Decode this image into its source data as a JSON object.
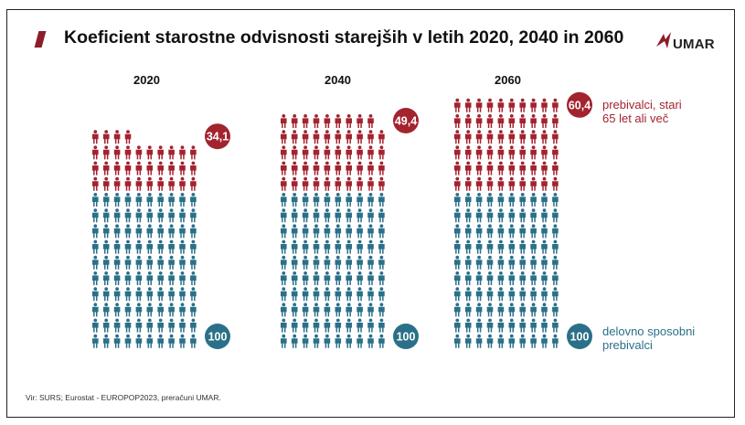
{
  "chart_data": {
    "type": "pictogram",
    "title": "Koeficient starostne odvisnosti starejših v letih 2020, 2040 in 2060",
    "categories": [
      "2020",
      "2040",
      "2060"
    ],
    "series": [
      {
        "name": "prebivalci, stari 65 let ali več",
        "values": [
          34.1,
          49.4,
          60.4
        ],
        "labels": [
          "34,1",
          "49,4",
          "60,4"
        ]
      },
      {
        "name": "delovno sposobni prebivalci",
        "values": [
          100,
          100,
          100
        ],
        "labels": [
          "100",
          "100",
          "100"
        ]
      }
    ]
  },
  "colors": {
    "old": "#a3232f",
    "working": "#2a7088",
    "brand": "#8b1e2a"
  },
  "legend": {
    "old_line1": "prebivalci, stari",
    "old_line2": "65 let ali več",
    "working_line1": "delovno sposobni",
    "working_line2": "prebivalci"
  },
  "logo_text": "UMAR",
  "source": "Vir: SURS; Eurostat - EUROPOP2023, preračuni UMAR."
}
